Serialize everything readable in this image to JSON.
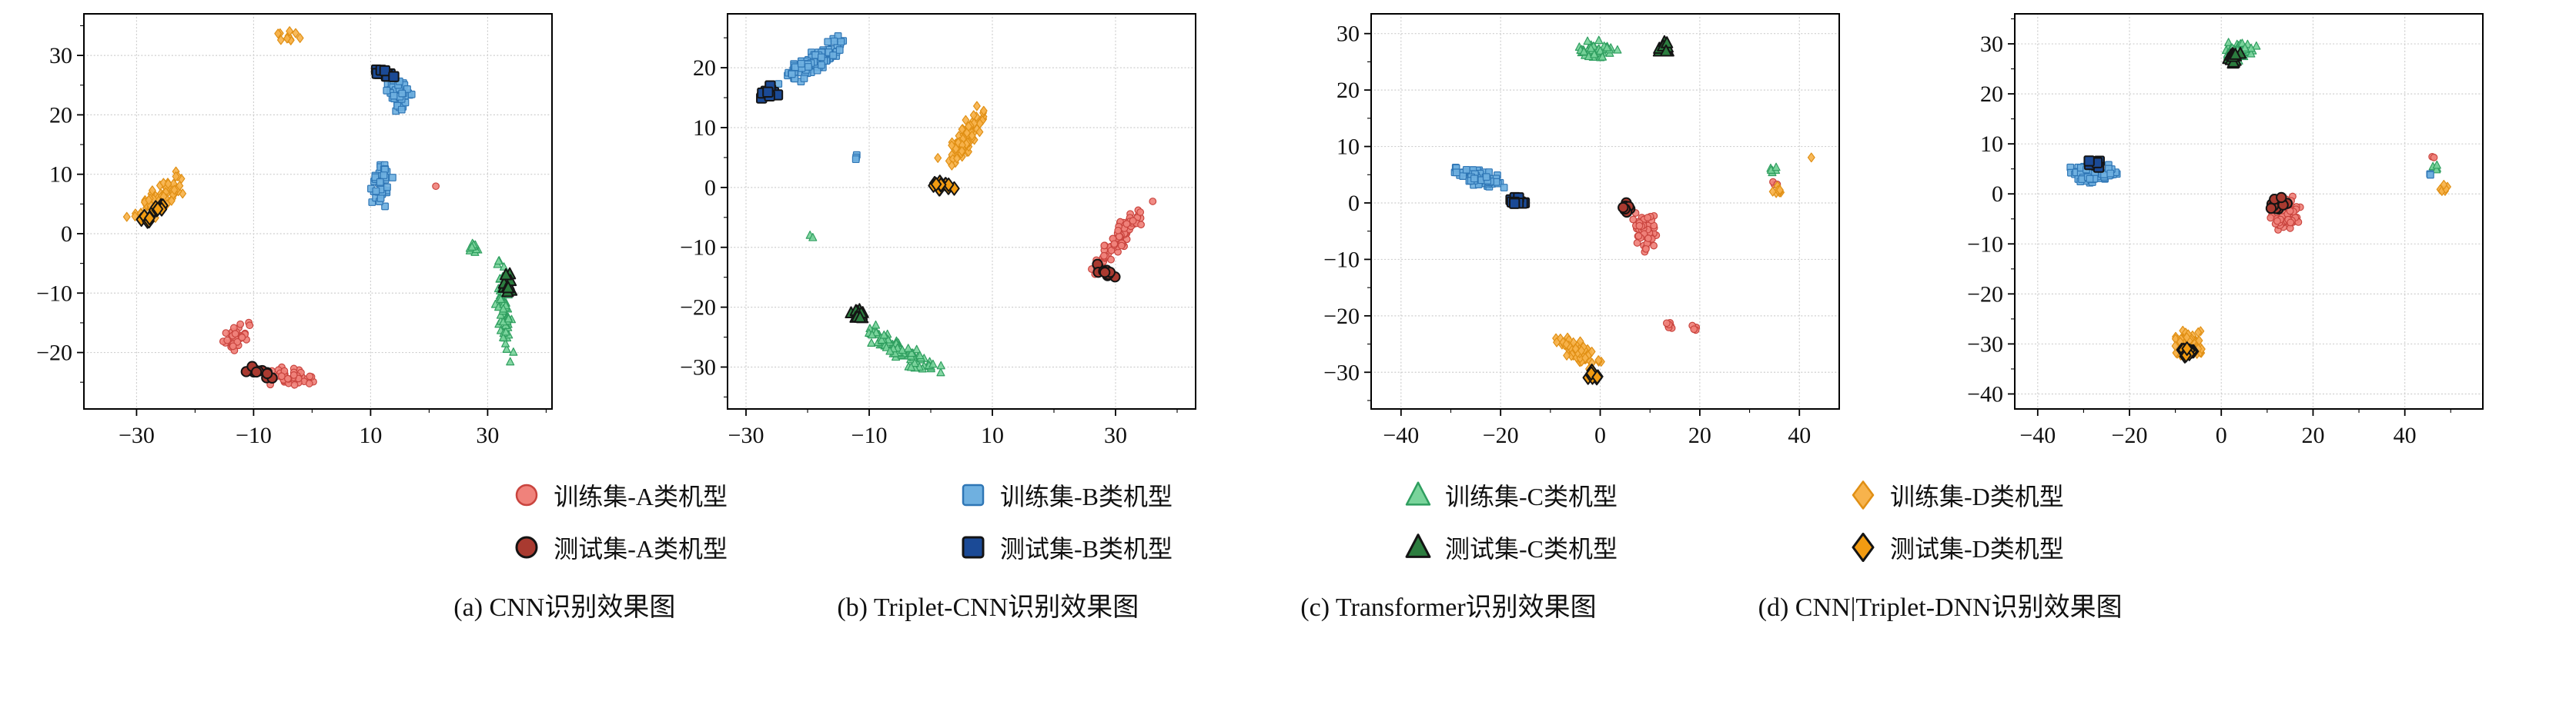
{
  "colors": {
    "A": {
      "train_fill": "#f0827b",
      "train_stroke": "#c9443e",
      "test_fill": "#a93a30",
      "test_stroke": "#141414"
    },
    "B": {
      "train_fill": "#6fb0e0",
      "train_stroke": "#2f76b5",
      "test_fill": "#1b4a96",
      "test_stroke": "#141414"
    },
    "C": {
      "train_fill": "#79d49b",
      "train_stroke": "#2f9e5f",
      "test_fill": "#2c7d3f",
      "test_stroke": "#141414"
    },
    "D": {
      "train_fill": "#f7b34c",
      "train_stroke": "#e08f14",
      "test_fill": "#f29b11",
      "test_stroke": "#141414"
    }
  },
  "legend": {
    "columns": [
      {
        "cls": "A",
        "marker": "circle",
        "train_label": "训练集-A类机型",
        "test_label": "测试集-A类机型"
      },
      {
        "cls": "B",
        "marker": "square",
        "train_label": "训练集-B类机型",
        "test_label": "测试集-B类机型"
      },
      {
        "cls": "C",
        "marker": "triangle",
        "train_label": "训练集-C类机型",
        "test_label": "测试集-C类机型"
      },
      {
        "cls": "D",
        "marker": "diamond",
        "train_label": "训练集-D类机型",
        "test_label": "测试集-D类机型"
      }
    ]
  },
  "chart_data": [
    {
      "type": "scatter",
      "caption": "(a) CNN识别效果图",
      "xlim": [
        -39,
        41
      ],
      "ylim": [
        -29.5,
        37
      ],
      "xticks": [
        -30,
        -10,
        10,
        30
      ],
      "yticks": [
        -20,
        -10,
        0,
        10,
        20,
        30
      ],
      "grid": true,
      "clusters": [
        {
          "cls": "D",
          "kind": "train",
          "cx": -26.5,
          "cy": 5.5,
          "rx": 7.5,
          "ry": 2.8,
          "rot": 38,
          "n": 85
        },
        {
          "cls": "D",
          "kind": "train",
          "cx": -4,
          "cy": 33,
          "rx": 2.6,
          "ry": 1.4,
          "rot": 0,
          "n": 12
        },
        {
          "cls": "B",
          "kind": "train",
          "cx": 11.5,
          "cy": 8,
          "rx": 2.2,
          "ry": 4.5,
          "rot": -12,
          "n": 45
        },
        {
          "cls": "B",
          "kind": "train",
          "cx": 14.8,
          "cy": 23.5,
          "rx": 2.6,
          "ry": 5.0,
          "rot": 8,
          "n": 50
        },
        {
          "cls": "A",
          "kind": "train",
          "cx": -13,
          "cy": -17.5,
          "rx": 2.6,
          "ry": 4.2,
          "rot": -35,
          "n": 40
        },
        {
          "cls": "A",
          "kind": "train",
          "cx": -4,
          "cy": -24,
          "rx": 5.5,
          "ry": 2.0,
          "rot": -8,
          "n": 45
        },
        {
          "cls": "A",
          "kind": "train",
          "cx": 21.5,
          "cy": 8,
          "rx": 0.4,
          "ry": 0.4,
          "rot": 0,
          "n": 1
        },
        {
          "cls": "C",
          "kind": "train",
          "cx": 32.8,
          "cy": -13,
          "rx": 1.6,
          "ry": 10.5,
          "rot": 4,
          "n": 70
        },
        {
          "cls": "C",
          "kind": "train",
          "cx": 27.6,
          "cy": -2.5,
          "rx": 1.5,
          "ry": 1.6,
          "rot": 0,
          "n": 12
        },
        {
          "cls": "D",
          "kind": "test",
          "cx": -27.5,
          "cy": 3.2,
          "rx": 4.2,
          "ry": 1.4,
          "rot": 38,
          "n": 14
        },
        {
          "cls": "B",
          "kind": "test",
          "cx": 12.3,
          "cy": 27,
          "rx": 2.2,
          "ry": 1.5,
          "rot": 0,
          "n": 13
        },
        {
          "cls": "A",
          "kind": "test",
          "cx": -9,
          "cy": -23.2,
          "rx": 3.6,
          "ry": 1.2,
          "rot": -12,
          "n": 13
        },
        {
          "cls": "C",
          "kind": "test",
          "cx": 33.5,
          "cy": -8.5,
          "rx": 1.3,
          "ry": 2.6,
          "rot": 0,
          "n": 11
        }
      ]
    },
    {
      "type": "scatter",
      "caption": "(b) Triplet-CNN识别效果图",
      "xlim": [
        -33,
        43
      ],
      "ylim": [
        -37,
        29
      ],
      "xticks": [
        -30,
        -10,
        10,
        30
      ],
      "yticks": [
        -30,
        -20,
        -10,
        0,
        10,
        20
      ],
      "grid": true,
      "clusters": [
        {
          "cls": "B",
          "kind": "train",
          "cx": -19,
          "cy": 21,
          "rx": 8.5,
          "ry": 2.2,
          "rot": 37,
          "n": 95
        },
        {
          "cls": "B",
          "kind": "train",
          "cx": -12.5,
          "cy": 5,
          "rx": 1.6,
          "ry": 1.0,
          "rot": 0,
          "n": 3
        },
        {
          "cls": "D",
          "kind": "train",
          "cx": 5.5,
          "cy": 8,
          "rx": 2.2,
          "ry": 7.5,
          "rot": -33,
          "n": 85
        },
        {
          "cls": "A",
          "kind": "train",
          "cx": 31,
          "cy": -8,
          "rx": 2.0,
          "ry": 9.5,
          "rot": -35,
          "n": 85
        },
        {
          "cls": "C",
          "kind": "train",
          "cx": -5,
          "cy": -27,
          "rx": 11.5,
          "ry": 2.0,
          "rot": -33,
          "n": 95
        },
        {
          "cls": "C",
          "kind": "train",
          "cx": -19.5,
          "cy": -8,
          "rx": 0.7,
          "ry": 0.7,
          "rot": 0,
          "n": 2
        },
        {
          "cls": "B",
          "kind": "test",
          "cx": -26.5,
          "cy": 16,
          "rx": 2.2,
          "ry": 1.4,
          "rot": 20,
          "n": 13
        },
        {
          "cls": "D",
          "kind": "test",
          "cx": 2,
          "cy": 0.5,
          "rx": 2.2,
          "ry": 1.5,
          "rot": -20,
          "n": 13
        },
        {
          "cls": "A",
          "kind": "test",
          "cx": 28,
          "cy": -14.2,
          "rx": 2.6,
          "ry": 1.4,
          "rot": -30,
          "n": 13
        },
        {
          "cls": "C",
          "kind": "test",
          "cx": -12,
          "cy": -21,
          "rx": 2.4,
          "ry": 1.3,
          "rot": -25,
          "n": 13
        }
      ]
    },
    {
      "type": "scatter",
      "caption": "(c) Transformer识别效果图",
      "xlim": [
        -46,
        48
      ],
      "ylim": [
        -36.5,
        33.5
      ],
      "xticks": [
        -40,
        -20,
        0,
        20,
        40
      ],
      "yticks": [
        -30,
        -20,
        -10,
        0,
        10,
        20,
        30
      ],
      "grid": true,
      "clusters": [
        {
          "cls": "C",
          "kind": "train",
          "cx": -0.5,
          "cy": 27,
          "rx": 5.0,
          "ry": 2.2,
          "rot": 0,
          "n": 55
        },
        {
          "cls": "C",
          "kind": "train",
          "cx": 34.5,
          "cy": 6,
          "rx": 1.1,
          "ry": 1.0,
          "rot": 0,
          "n": 6
        },
        {
          "cls": "B",
          "kind": "train",
          "cx": -24.5,
          "cy": 4.5,
          "rx": 7.0,
          "ry": 1.9,
          "rot": -14,
          "n": 75
        },
        {
          "cls": "A",
          "kind": "train",
          "cx": 9,
          "cy": -5,
          "rx": 3.2,
          "ry": 4.4,
          "rot": 15,
          "n": 70
        },
        {
          "cls": "A",
          "kind": "train",
          "cx": 14,
          "cy": -21.5,
          "rx": 1.6,
          "ry": 1.0,
          "rot": 0,
          "n": 8
        },
        {
          "cls": "A",
          "kind": "train",
          "cx": 19,
          "cy": -22,
          "rx": 1.1,
          "ry": 0.8,
          "rot": 0,
          "n": 5
        },
        {
          "cls": "A",
          "kind": "train",
          "cx": 35,
          "cy": 3.5,
          "rx": 0.8,
          "ry": 0.8,
          "rot": 0,
          "n": 3
        },
        {
          "cls": "D",
          "kind": "train",
          "cx": -4,
          "cy": -26.5,
          "rx": 6.5,
          "ry": 2.2,
          "rot": -24,
          "n": 80
        },
        {
          "cls": "D",
          "kind": "train",
          "cx": 35.5,
          "cy": 2.0,
          "rx": 1.4,
          "ry": 1.2,
          "rot": 0,
          "n": 9
        },
        {
          "cls": "D",
          "kind": "train",
          "cx": 42.5,
          "cy": 8,
          "rx": 0.5,
          "ry": 0.5,
          "rot": 0,
          "n": 1
        },
        {
          "cls": "C",
          "kind": "test",
          "cx": 13,
          "cy": 27.5,
          "rx": 1.9,
          "ry": 1.6,
          "rot": 0,
          "n": 12
        },
        {
          "cls": "B",
          "kind": "test",
          "cx": -17,
          "cy": 0.5,
          "rx": 2.6,
          "ry": 1.2,
          "rot": -14,
          "n": 12
        },
        {
          "cls": "A",
          "kind": "test",
          "cx": 5.5,
          "cy": -0.8,
          "rx": 2.1,
          "ry": 1.4,
          "rot": 0,
          "n": 11
        },
        {
          "cls": "D",
          "kind": "test",
          "cx": -1.5,
          "cy": -30.5,
          "rx": 2.3,
          "ry": 1.3,
          "rot": -15,
          "n": 12
        }
      ]
    },
    {
      "type": "scatter",
      "caption": "(d) CNN|Triplet-DNN识别效果图",
      "xlim": [
        -45,
        57
      ],
      "ylim": [
        -43,
        36
      ],
      "xticks": [
        -40,
        -20,
        0,
        20,
        40
      ],
      "yticks": [
        -40,
        -30,
        -20,
        -10,
        0,
        10,
        20,
        30
      ],
      "grid": true,
      "clusters": [
        {
          "cls": "C",
          "kind": "train",
          "cx": 4,
          "cy": 28.5,
          "rx": 4.6,
          "ry": 2.6,
          "rot": 0,
          "n": 55
        },
        {
          "cls": "C",
          "kind": "train",
          "cx": 46.5,
          "cy": 5.2,
          "rx": 1.0,
          "ry": 0.9,
          "rot": 0,
          "n": 5
        },
        {
          "cls": "B",
          "kind": "train",
          "cx": -28,
          "cy": 4,
          "rx": 5.8,
          "ry": 2.6,
          "rot": 8,
          "n": 80
        },
        {
          "cls": "B",
          "kind": "train",
          "cx": 45.5,
          "cy": 3.8,
          "rx": 0.7,
          "ry": 0.6,
          "rot": 0,
          "n": 2
        },
        {
          "cls": "A",
          "kind": "train",
          "cx": 14,
          "cy": -4,
          "rx": 4.2,
          "ry": 4.6,
          "rot": 0,
          "n": 80
        },
        {
          "cls": "A",
          "kind": "train",
          "cx": 46,
          "cy": 7.5,
          "rx": 0.7,
          "ry": 0.7,
          "rot": 0,
          "n": 2
        },
        {
          "cls": "D",
          "kind": "train",
          "cx": -7,
          "cy": -30,
          "rx": 4.2,
          "ry": 3.6,
          "rot": 0,
          "n": 75
        },
        {
          "cls": "D",
          "kind": "train",
          "cx": 48.5,
          "cy": 0.8,
          "rx": 1.5,
          "ry": 1.4,
          "rot": 0,
          "n": 8
        },
        {
          "cls": "C",
          "kind": "test",
          "cx": 2.5,
          "cy": 27,
          "rx": 2.6,
          "ry": 1.9,
          "rot": 0,
          "n": 14
        },
        {
          "cls": "B",
          "kind": "test",
          "cx": -27.5,
          "cy": 6,
          "rx": 2.6,
          "ry": 1.4,
          "rot": 0,
          "n": 12
        },
        {
          "cls": "A",
          "kind": "test",
          "cx": 12.5,
          "cy": -1.8,
          "rx": 2.6,
          "ry": 1.9,
          "rot": 0,
          "n": 14
        },
        {
          "cls": "D",
          "kind": "test",
          "cx": -8,
          "cy": -31.5,
          "rx": 2.6,
          "ry": 1.9,
          "rot": 0,
          "n": 13
        }
      ]
    }
  ]
}
